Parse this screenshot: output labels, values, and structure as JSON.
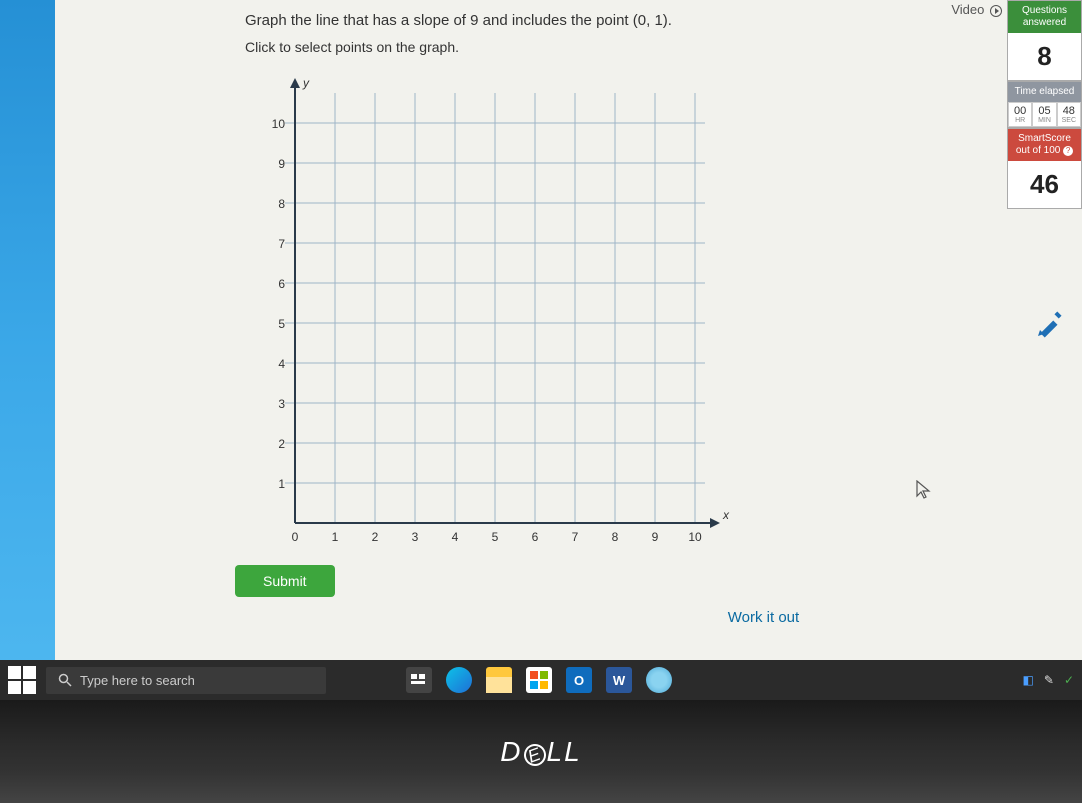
{
  "problem": {
    "statement": "Graph the line that has a slope of 9 and includes the point (0, 1).",
    "instruction": "Click to select points on the graph."
  },
  "graph": {
    "x_axis_label": "x",
    "y_axis_label": "y",
    "xlim": [
      0,
      10
    ],
    "ylim": [
      0,
      10
    ],
    "xticks": [
      "0",
      "1",
      "2",
      "3",
      "4",
      "5",
      "6",
      "7",
      "8",
      "9",
      "10"
    ],
    "yticks": [
      "1",
      "2",
      "3",
      "4",
      "5",
      "6",
      "7",
      "8",
      "9",
      "10"
    ],
    "grid_color": "#9fb5c8",
    "axis_color": "#2a3a4a",
    "tick_font_size": 12,
    "tick_color": "#333"
  },
  "buttons": {
    "submit": "Submit",
    "work_it_out": "Work it out"
  },
  "video_link": "Video",
  "panels": {
    "questions_header": "Questions answered",
    "questions_value": "8",
    "time_header": "Time elapsed",
    "time": {
      "hr": "00",
      "min": "05",
      "sec": "48",
      "hr_lbl": "HR",
      "min_lbl": "MIN",
      "sec_lbl": "SEC"
    },
    "smartscore_header": "SmartScore out of 100",
    "smartscore_value": "46"
  },
  "taskbar": {
    "search_placeholder": "Type here to search"
  },
  "laptop_brand": "DELL"
}
